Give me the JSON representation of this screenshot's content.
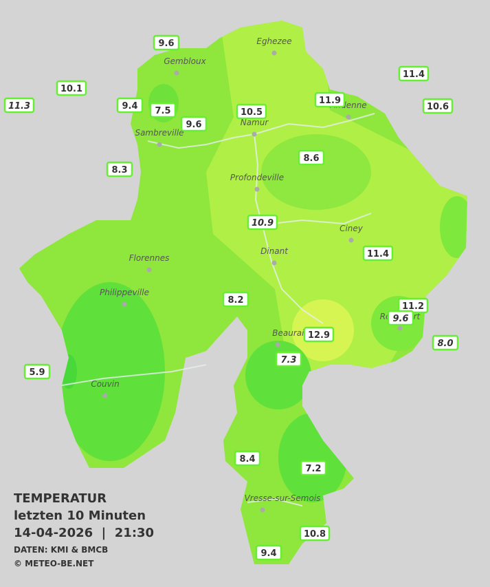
{
  "cities": [
    "Eghezee",
    "Gembloux",
    "Namur",
    "Andenne",
    "Sambreville",
    "Profondeville",
    "Ciney",
    "Florennes",
    "Dinant",
    "Philippeville",
    "Rochefort",
    "Beauraing",
    "Couvin",
    "Vresse-sur-Semois"
  ],
  "stations": [
    {
      "label": "9.6",
      "italic": false
    },
    {
      "label": "10.1",
      "italic": false
    },
    {
      "label": "11.3",
      "italic": true
    },
    {
      "label": "9.4",
      "italic": false
    },
    {
      "label": "7.5",
      "italic": false
    },
    {
      "label": "9.6",
      "italic": false
    },
    {
      "label": "10.5",
      "italic": false
    },
    {
      "label": "11.9",
      "italic": false
    },
    {
      "label": "11.4",
      "italic": false
    },
    {
      "label": "10.6",
      "italic": false
    },
    {
      "label": "8.3",
      "italic": false
    },
    {
      "label": "8.6",
      "italic": false
    },
    {
      "label": "10.9",
      "italic": true
    },
    {
      "label": "11.4",
      "italic": false
    },
    {
      "label": "8.2",
      "italic": false
    },
    {
      "label": "11.2",
      "italic": false
    },
    {
      "label": "9.6",
      "italic": true
    },
    {
      "label": "12.9",
      "italic": false
    },
    {
      "label": "8.0",
      "italic": true
    },
    {
      "label": "7.3",
      "italic": true
    },
    {
      "label": "5.9",
      "italic": false
    },
    {
      "label": "8.4",
      "italic": false
    },
    {
      "label": "7.2",
      "italic": false
    },
    {
      "label": "10.8",
      "italic": false
    },
    {
      "label": "9.4",
      "italic": false
    }
  ],
  "legend": {
    "title": "TEMPERATUR",
    "subtitle": "letzten 10 Minuten",
    "datetime": "14-04-2026  |  21:30",
    "source": "DATEN: KMI & BMCB",
    "copyright": "© METEO-BE.NET"
  }
}
